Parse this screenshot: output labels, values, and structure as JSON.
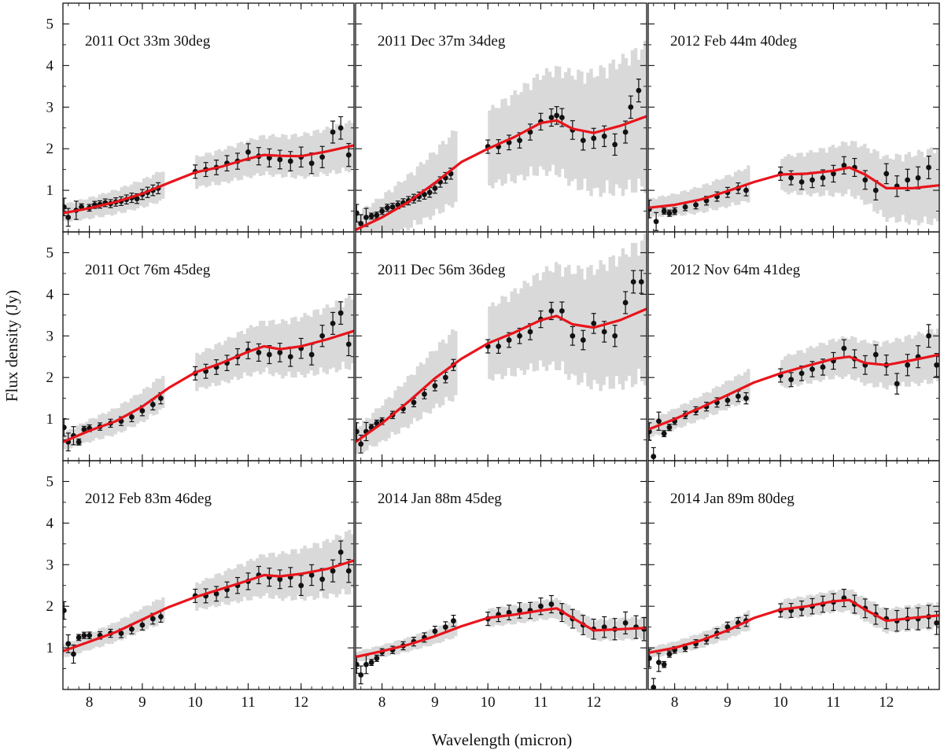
{
  "figure": {
    "xlabel": "Wavelength (micron)",
    "ylabel": "Flux density (Jy)"
  },
  "colors": {
    "data_points": "#111111",
    "model": "#e8141b",
    "uncertainty_band": "#d9d9d9",
    "axes": "#111111"
  },
  "chart_data": [
    {
      "type": "scatter",
      "title": "2011 Oct 33m 30deg",
      "xlim": [
        7.5,
        13.0
      ],
      "ylim": [
        0,
        5.5
      ],
      "xticks": [
        8,
        9,
        10,
        11,
        12
      ],
      "yticks": [
        1,
        2,
        3,
        4,
        5
      ],
      "model": {
        "x": [
          7.5,
          8.0,
          8.5,
          9.0,
          9.5,
          10.0,
          10.5,
          11.0,
          11.3,
          11.6,
          12.0,
          12.5,
          13.0
        ],
        "y": [
          0.45,
          0.57,
          0.72,
          0.92,
          1.18,
          1.43,
          1.57,
          1.76,
          1.85,
          1.83,
          1.82,
          1.94,
          2.08
        ]
      },
      "obs": {
        "x": [
          7.52,
          7.6,
          7.75,
          7.85,
          8.0,
          8.1,
          8.2,
          8.3,
          8.4,
          8.5,
          8.6,
          8.7,
          8.8,
          8.9,
          9.0,
          9.1,
          9.2,
          9.3,
          10.0,
          10.2,
          10.4,
          10.6,
          10.8,
          11.0,
          11.2,
          11.4,
          11.6,
          11.8,
          12.0,
          12.2,
          12.4,
          12.6,
          12.75,
          12.9
        ],
        "y": [
          0.6,
          0.35,
          0.52,
          0.6,
          0.58,
          0.65,
          0.66,
          0.7,
          0.68,
          0.72,
          0.74,
          0.78,
          0.82,
          0.8,
          0.9,
          0.95,
          1.0,
          1.05,
          1.45,
          1.5,
          1.55,
          1.65,
          1.7,
          1.92,
          1.82,
          1.78,
          1.74,
          1.7,
          1.8,
          1.65,
          1.8,
          2.4,
          2.5,
          1.85
        ]
      },
      "band_halfwidth": [
        0.2,
        0.35,
        0.55
      ]
    },
    {
      "type": "scatter",
      "title": "2011 Dec 37m 34deg",
      "xlim": [
        7.5,
        13.0
      ],
      "ylim": [
        0,
        5.5
      ],
      "xticks": [
        8,
        9,
        10,
        11,
        12
      ],
      "yticks": [
        1,
        2,
        3,
        4,
        5
      ],
      "model": {
        "x": [
          7.5,
          8.0,
          8.5,
          9.0,
          9.5,
          10.0,
          10.5,
          11.0,
          11.3,
          11.6,
          12.0,
          12.5,
          13.0
        ],
        "y": [
          0.05,
          0.35,
          0.72,
          1.18,
          1.68,
          2.0,
          2.28,
          2.62,
          2.68,
          2.48,
          2.38,
          2.55,
          2.78
        ]
      },
      "obs": {
        "x": [
          7.52,
          7.6,
          7.7,
          7.8,
          7.9,
          8.0,
          8.1,
          8.2,
          8.3,
          8.4,
          8.5,
          8.6,
          8.7,
          8.8,
          8.9,
          9.0,
          9.1,
          9.2,
          9.3,
          10.0,
          10.2,
          10.4,
          10.6,
          10.8,
          11.0,
          11.2,
          11.3,
          11.4,
          11.6,
          11.8,
          12.0,
          12.2,
          12.4,
          12.6,
          12.7,
          12.85
        ],
        "y": [
          0.45,
          0.2,
          0.35,
          0.38,
          0.4,
          0.5,
          0.58,
          0.6,
          0.65,
          0.7,
          0.75,
          0.8,
          0.85,
          0.9,
          0.95,
          1.05,
          1.2,
          1.3,
          1.4,
          2.05,
          2.05,
          2.15,
          2.2,
          2.4,
          2.65,
          2.75,
          2.8,
          2.75,
          2.45,
          2.2,
          2.25,
          2.3,
          2.1,
          2.4,
          3.0,
          3.4
        ]
      },
      "band_halfwidth": [
        0.35,
        0.85,
        1.6
      ]
    },
    {
      "type": "scatter",
      "title": "2012 Feb 44m 40deg",
      "xlim": [
        7.5,
        13.0
      ],
      "ylim": [
        0,
        5.5
      ],
      "xticks": [
        8,
        9,
        10,
        11,
        12
      ],
      "yticks": [
        1,
        2,
        3,
        4,
        5
      ],
      "model": {
        "x": [
          7.5,
          8.0,
          8.5,
          9.0,
          9.5,
          10.0,
          10.5,
          11.0,
          11.3,
          11.6,
          12.0,
          12.5,
          13.0
        ],
        "y": [
          0.58,
          0.65,
          0.78,
          0.98,
          1.2,
          1.38,
          1.4,
          1.47,
          1.55,
          1.38,
          1.05,
          1.05,
          1.12
        ]
      },
      "obs": {
        "x": [
          7.52,
          7.65,
          7.8,
          7.9,
          8.0,
          8.2,
          8.4,
          8.6,
          8.8,
          9.0,
          9.2,
          9.35,
          10.0,
          10.2,
          10.4,
          10.6,
          10.8,
          11.0,
          11.2,
          11.4,
          11.6,
          11.8,
          12.0,
          12.2,
          12.4,
          12.6,
          12.8
        ],
        "y": [
          0.55,
          0.25,
          0.5,
          0.45,
          0.5,
          0.6,
          0.65,
          0.75,
          0.85,
          0.95,
          1.05,
          1.0,
          1.4,
          1.3,
          1.2,
          1.25,
          1.3,
          1.4,
          1.6,
          1.55,
          1.25,
          1.0,
          1.4,
          1.1,
          1.25,
          1.3,
          1.55
        ]
      },
      "band_halfwidth": [
        0.2,
        0.4,
        0.85
      ]
    },
    {
      "type": "scatter",
      "title": "2011 Oct 76m 45deg",
      "xlim": [
        7.5,
        13.0
      ],
      "ylim": [
        0,
        5.5
      ],
      "xticks": [
        8,
        9,
        10,
        11,
        12
      ],
      "yticks": [
        1,
        2,
        3,
        4,
        5
      ],
      "model": {
        "x": [
          7.5,
          8.0,
          8.5,
          9.0,
          9.5,
          10.0,
          10.5,
          11.0,
          11.3,
          11.6,
          12.0,
          12.5,
          13.0
        ],
        "y": [
          0.45,
          0.72,
          0.95,
          1.3,
          1.75,
          2.12,
          2.35,
          2.62,
          2.75,
          2.68,
          2.75,
          2.92,
          3.12
        ]
      },
      "obs": {
        "x": [
          7.52,
          7.6,
          7.7,
          7.8,
          7.9,
          8.0,
          8.2,
          8.4,
          8.6,
          8.8,
          9.0,
          9.2,
          9.35,
          10.0,
          10.2,
          10.4,
          10.6,
          10.8,
          11.0,
          11.2,
          11.4,
          11.6,
          11.8,
          12.0,
          12.2,
          12.4,
          12.6,
          12.75,
          12.9
        ],
        "y": [
          0.8,
          0.45,
          0.6,
          0.45,
          0.75,
          0.78,
          0.82,
          0.9,
          0.95,
          1.05,
          1.2,
          1.35,
          1.5,
          2.1,
          2.15,
          2.25,
          2.35,
          2.5,
          2.65,
          2.6,
          2.55,
          2.6,
          2.5,
          2.7,
          2.55,
          3.0,
          3.3,
          3.55,
          2.8
        ]
      },
      "band_halfwidth": [
        0.2,
        0.4,
        0.8
      ]
    },
    {
      "type": "scatter",
      "title": "2011 Dec 56m 36deg",
      "xlim": [
        7.5,
        13.0
      ],
      "ylim": [
        0,
        5.5
      ],
      "xticks": [
        8,
        9,
        10,
        11,
        12
      ],
      "yticks": [
        1,
        2,
        3,
        4,
        5
      ],
      "model": {
        "x": [
          7.5,
          8.0,
          8.5,
          9.0,
          9.5,
          10.0,
          10.5,
          11.0,
          11.3,
          11.6,
          12.0,
          12.5,
          13.0
        ],
        "y": [
          0.45,
          0.9,
          1.42,
          1.98,
          2.45,
          2.82,
          3.08,
          3.38,
          3.48,
          3.28,
          3.2,
          3.38,
          3.65
        ]
      },
      "obs": {
        "x": [
          7.52,
          7.6,
          7.7,
          7.8,
          7.9,
          8.0,
          8.2,
          8.4,
          8.6,
          8.8,
          9.0,
          9.2,
          9.35,
          10.0,
          10.2,
          10.4,
          10.6,
          10.8,
          11.0,
          11.2,
          11.4,
          11.6,
          11.8,
          12.0,
          12.2,
          12.4,
          12.6,
          12.75,
          12.9
        ],
        "y": [
          0.7,
          0.4,
          0.7,
          0.8,
          0.9,
          0.95,
          1.1,
          1.25,
          1.4,
          1.6,
          1.8,
          2.0,
          2.3,
          2.75,
          2.75,
          2.9,
          3.0,
          3.1,
          3.4,
          3.6,
          3.6,
          3.0,
          2.9,
          3.3,
          3.1,
          3.0,
          3.8,
          4.3,
          4.3
        ]
      },
      "band_halfwidth": [
        0.3,
        0.8,
        1.6
      ]
    },
    {
      "type": "scatter",
      "title": "2012 Nov 64m 41deg",
      "xlim": [
        7.5,
        13.0
      ],
      "ylim": [
        0,
        5.5
      ],
      "xticks": [
        8,
        9,
        10,
        11,
        12
      ],
      "yticks": [
        1,
        2,
        3,
        4,
        5
      ],
      "model": {
        "x": [
          7.5,
          8.0,
          8.5,
          9.0,
          9.5,
          10.0,
          10.5,
          11.0,
          11.3,
          11.6,
          12.0,
          12.5,
          13.0
        ],
        "y": [
          0.75,
          1.0,
          1.28,
          1.58,
          1.88,
          2.1,
          2.28,
          2.45,
          2.5,
          2.35,
          2.3,
          2.42,
          2.55
        ]
      },
      "obs": {
        "x": [
          7.52,
          7.6,
          7.7,
          7.8,
          7.9,
          8.0,
          8.2,
          8.4,
          8.6,
          8.8,
          9.0,
          9.2,
          9.35,
          10.0,
          10.2,
          10.4,
          10.6,
          10.8,
          11.0,
          11.2,
          11.4,
          11.6,
          11.8,
          12.0,
          12.2,
          12.4,
          12.6,
          12.8,
          12.95
        ],
        "y": [
          0.7,
          0.1,
          0.95,
          0.65,
          0.8,
          0.95,
          1.1,
          1.2,
          1.3,
          1.4,
          1.45,
          1.55,
          1.5,
          2.05,
          1.95,
          2.1,
          2.2,
          2.25,
          2.4,
          2.7,
          2.45,
          2.3,
          2.55,
          2.3,
          1.85,
          2.3,
          2.5,
          3.0,
          2.3
        ]
      },
      "band_halfwidth": [
        0.2,
        0.35,
        0.6
      ]
    },
    {
      "type": "scatter",
      "title": "2012 Feb 83m 46deg",
      "xlim": [
        7.5,
        13.0
      ],
      "ylim": [
        0,
        5.5
      ],
      "xticks": [
        8,
        9,
        10,
        11,
        12
      ],
      "yticks": [
        1,
        2,
        3,
        4,
        5
      ],
      "model": {
        "x": [
          7.5,
          8.0,
          8.5,
          9.0,
          9.5,
          10.0,
          10.5,
          11.0,
          11.3,
          11.6,
          12.0,
          12.5,
          13.0
        ],
        "y": [
          0.92,
          1.15,
          1.38,
          1.68,
          1.98,
          2.22,
          2.42,
          2.62,
          2.75,
          2.72,
          2.78,
          2.9,
          3.1
        ]
      },
      "obs": {
        "x": [
          7.52,
          7.6,
          7.7,
          7.8,
          7.9,
          8.0,
          8.2,
          8.4,
          8.6,
          8.8,
          9.0,
          9.2,
          9.35,
          10.0,
          10.2,
          10.4,
          10.6,
          10.8,
          11.0,
          11.2,
          11.4,
          11.6,
          11.8,
          12.0,
          12.2,
          12.4,
          12.6,
          12.75,
          12.9
        ],
        "y": [
          1.9,
          1.1,
          0.85,
          1.25,
          1.3,
          1.3,
          1.3,
          1.35,
          1.35,
          1.45,
          1.55,
          1.7,
          1.75,
          2.25,
          2.25,
          2.3,
          2.4,
          2.5,
          2.6,
          2.75,
          2.7,
          2.65,
          2.7,
          2.5,
          2.75,
          2.65,
          2.85,
          3.3,
          2.85
        ]
      },
      "band_halfwidth": [
        0.15,
        0.3,
        0.7
      ]
    },
    {
      "type": "scatter",
      "title": "2014 Jan 88m 45deg",
      "xlim": [
        7.5,
        13.0
      ],
      "ylim": [
        0,
        5.5
      ],
      "xticks": [
        8,
        9,
        10,
        11,
        12
      ],
      "yticks": [
        1,
        2,
        3,
        4,
        5
      ],
      "model": {
        "x": [
          7.5,
          8.0,
          8.5,
          9.0,
          9.5,
          10.0,
          10.5,
          11.0,
          11.3,
          11.6,
          12.0,
          12.5,
          13.0
        ],
        "y": [
          0.78,
          0.92,
          1.08,
          1.28,
          1.52,
          1.72,
          1.8,
          1.9,
          1.95,
          1.72,
          1.42,
          1.45,
          1.48
        ]
      },
      "obs": {
        "x": [
          7.52,
          7.6,
          7.7,
          7.8,
          7.9,
          8.0,
          8.2,
          8.4,
          8.6,
          8.8,
          9.0,
          9.2,
          9.35,
          10.0,
          10.2,
          10.4,
          10.6,
          10.8,
          11.0,
          11.2,
          11.4,
          11.6,
          11.8,
          12.0,
          12.2,
          12.4,
          12.6,
          12.8,
          12.95
        ],
        "y": [
          0.6,
          0.35,
          0.6,
          0.65,
          0.75,
          0.9,
          0.95,
          1.05,
          1.15,
          1.25,
          1.4,
          1.5,
          1.65,
          1.7,
          1.8,
          1.85,
          1.9,
          1.9,
          2.0,
          2.05,
          1.85,
          1.7,
          1.55,
          1.45,
          1.5,
          1.45,
          1.6,
          1.5,
          1.45
        ]
      },
      "band_halfwidth": [
        0.12,
        0.2,
        0.25
      ]
    },
    {
      "type": "scatter",
      "title": "2014 Jan 89m 80deg",
      "xlim": [
        7.5,
        13.0
      ],
      "ylim": [
        0,
        5.5
      ],
      "xticks": [
        8,
        9,
        10,
        11,
        12
      ],
      "yticks": [
        1,
        2,
        3,
        4,
        5
      ],
      "model": {
        "x": [
          7.5,
          8.0,
          8.5,
          9.0,
          9.5,
          10.0,
          10.5,
          11.0,
          11.3,
          11.6,
          12.0,
          12.5,
          13.0
        ],
        "y": [
          0.88,
          1.0,
          1.18,
          1.42,
          1.72,
          1.92,
          2.0,
          2.12,
          2.15,
          1.92,
          1.65,
          1.72,
          1.78
        ]
      },
      "obs": {
        "x": [
          7.52,
          7.6,
          7.7,
          7.8,
          7.9,
          8.0,
          8.2,
          8.4,
          8.6,
          8.8,
          9.0,
          9.2,
          9.35,
          10.0,
          10.2,
          10.4,
          10.6,
          10.8,
          11.0,
          11.2,
          11.4,
          11.6,
          11.8,
          12.0,
          12.2,
          12.4,
          12.6,
          12.8,
          12.95
        ],
        "y": [
          0.75,
          0.05,
          0.65,
          0.6,
          0.85,
          0.95,
          1.0,
          1.1,
          1.2,
          1.35,
          1.5,
          1.6,
          1.65,
          1.9,
          1.9,
          1.95,
          2.0,
          2.05,
          2.1,
          2.2,
          2.05,
          1.95,
          1.8,
          1.7,
          1.65,
          1.7,
          1.7,
          1.75,
          1.6
        ]
      },
      "band_halfwidth": [
        0.12,
        0.22,
        0.3
      ]
    }
  ]
}
